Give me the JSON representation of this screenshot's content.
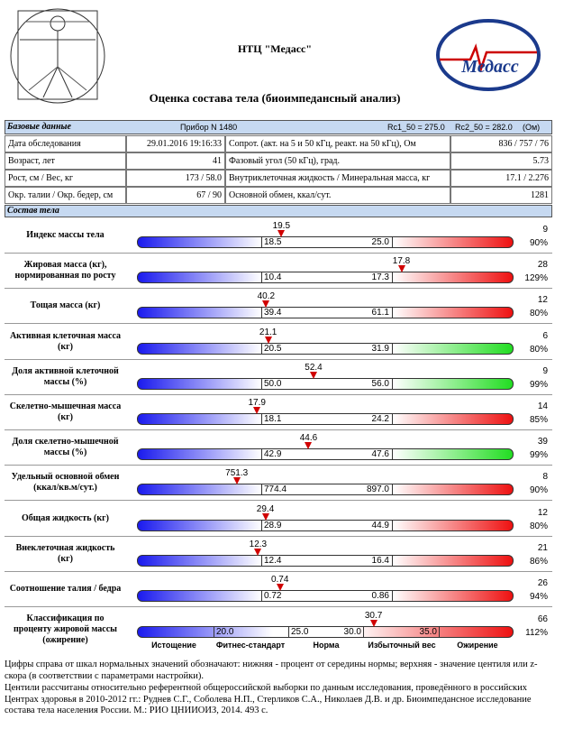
{
  "header": {
    "logo": "Медасс",
    "title": "НТЦ \"Медасс\"",
    "subtitle": "Оценка состава тела (биоимпедансный анализ)"
  },
  "base": {
    "heading": "Базовые данные",
    "device": "Прибор N 1480",
    "rc1": "Rc1_50 = 275.0",
    "rc2": "Rc2_50 = 282.0",
    "unit": "(Ом)",
    "rows": [
      [
        "Дата обследования",
        "29.01.2016 19:16:33",
        "Сопрот. (акт. на 5 и 50 кГц, реакт. на 50 кГц), Ом",
        "836 / 757 / 76"
      ],
      [
        "Возраст, лет",
        "41",
        "Фазовый угол (50 кГц), град.",
        "5.73"
      ],
      [
        "Рост, см / Вес, кг",
        "173 / 58.0",
        "Внутриклеточная жидкость / Минеральная масса, кг",
        "17.1 / 2.276"
      ],
      [
        "Окр. талии / Окр. бедер, см",
        "67 / 90",
        "Основной обмен, ккал/сут.",
        "1281"
      ]
    ]
  },
  "composition": {
    "heading": "Состав тела",
    "rows": [
      {
        "label": "Индекс массы тела",
        "value": "19.5",
        "low": "18.5",
        "high": "25.0",
        "centile": "9",
        "percent": "90%"
      },
      {
        "label": "Жировая масса (кг), нормированная по росту",
        "value": "17.8",
        "low": "10.4",
        "high": "17.3",
        "centile": "28",
        "percent": "129%"
      },
      {
        "label": "Тощая масса (кг)",
        "value": "40.2",
        "low": "39.4",
        "high": "61.1",
        "centile": "12",
        "percent": "80%"
      },
      {
        "label": "Активная клеточная масса (кг)",
        "value": "21.1",
        "low": "20.5",
        "high": "31.9",
        "centile": "6",
        "percent": "80%"
      },
      {
        "label": "Доля активной клеточной массы (%)",
        "value": "52.4",
        "low": "50.0",
        "high": "56.0",
        "centile": "9",
        "percent": "99%"
      },
      {
        "label": "Скелетно-мышечная масса (кг)",
        "value": "17.9",
        "low": "18.1",
        "high": "24.2",
        "centile": "14",
        "percent": "85%"
      },
      {
        "label": "Доля скелетно-мышечной массы (%)",
        "value": "44.6",
        "low": "42.9",
        "high": "47.6",
        "centile": "39",
        "percent": "99%"
      },
      {
        "label": "Удельный основной обмен (ккал/кв.м/сут.)",
        "value": "751.3",
        "low": "774.4",
        "high": "897.0",
        "centile": "8",
        "percent": "90%"
      },
      {
        "label": "Общая жидкость (кг)",
        "value": "29.4",
        "low": "28.9",
        "high": "44.9",
        "centile": "12",
        "percent": "80%"
      },
      {
        "label": "Внеклеточная жидкость (кг)",
        "value": "12.3",
        "low": "12.4",
        "high": "16.4",
        "centile": "21",
        "percent": "86%"
      },
      {
        "label": "Соотношение талия / бедра",
        "value": "0.74",
        "low": "0.72",
        "high": "0.86",
        "centile": "26",
        "percent": "94%"
      }
    ],
    "classification": {
      "label": "Классификация по проценту жировой массы (ожирение)",
      "value": "30.7",
      "scale": [
        "20.0",
        "25.0",
        "30.0",
        "35.0"
      ],
      "centile": "66",
      "percent": "112%",
      "legend": [
        "Истощение",
        "Фитнес-стандарт",
        "Норма",
        "Избыточный вес",
        "Ожирение"
      ]
    }
  },
  "footnotes": [
    "Цифры справа от шкал нормальных значений обозначают: нижняя - процент от середины нормы; верхняя - значение центиля или z-скора (в соответствии с параметрами настройки).",
    "Центили рассчитаны относительно референтной общероссийской выборки по данным исследования, проведённого в российских Центрах здоровья в 2010-2012 гг.: Руднев С.Г., Соболева Н.П., Стерликов С.А., Николаев Д.В. и др. Биоимпедансное исследование состава тела населения России. М.: РИО ЦНИИОИЗ, 2014. 493 с."
  ]
}
